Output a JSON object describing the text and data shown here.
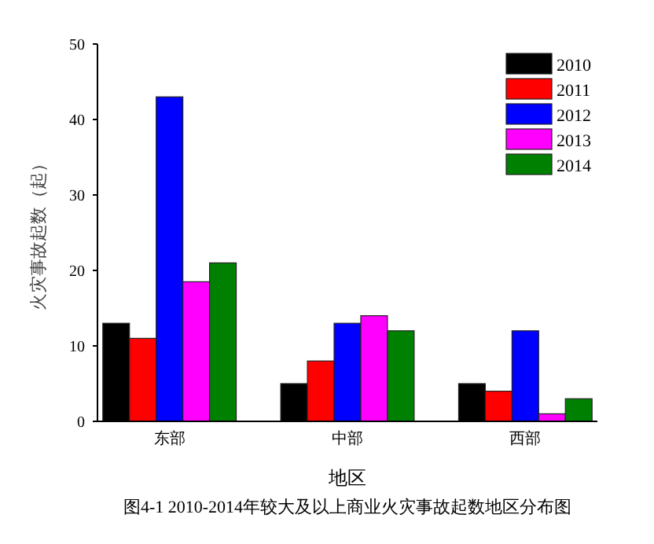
{
  "chart_data": {
    "type": "bar",
    "title": "图4-1 2010-2014年较大及以上商业火灾事故起数地区分布图",
    "xlabel": "地区",
    "ylabel": "火灾事故起数（起）",
    "categories": [
      "东部",
      "中部",
      "西部"
    ],
    "series": [
      {
        "name": "2010",
        "color": "#000000",
        "values": [
          13,
          5,
          5
        ]
      },
      {
        "name": "2011",
        "color": "#ff0000",
        "values": [
          11,
          8,
          4
        ]
      },
      {
        "name": "2012",
        "color": "#0000ff",
        "values": [
          43,
          13,
          12
        ]
      },
      {
        "name": "2013",
        "color": "#ff00ff",
        "values": [
          18.5,
          14,
          1
        ]
      },
      {
        "name": "2014",
        "color": "#008000",
        "values": [
          21,
          12,
          3
        ]
      }
    ],
    "ylim": [
      0,
      50
    ],
    "yticks": [
      0,
      10,
      20,
      30,
      40,
      50
    ],
    "legend": "top right"
  }
}
